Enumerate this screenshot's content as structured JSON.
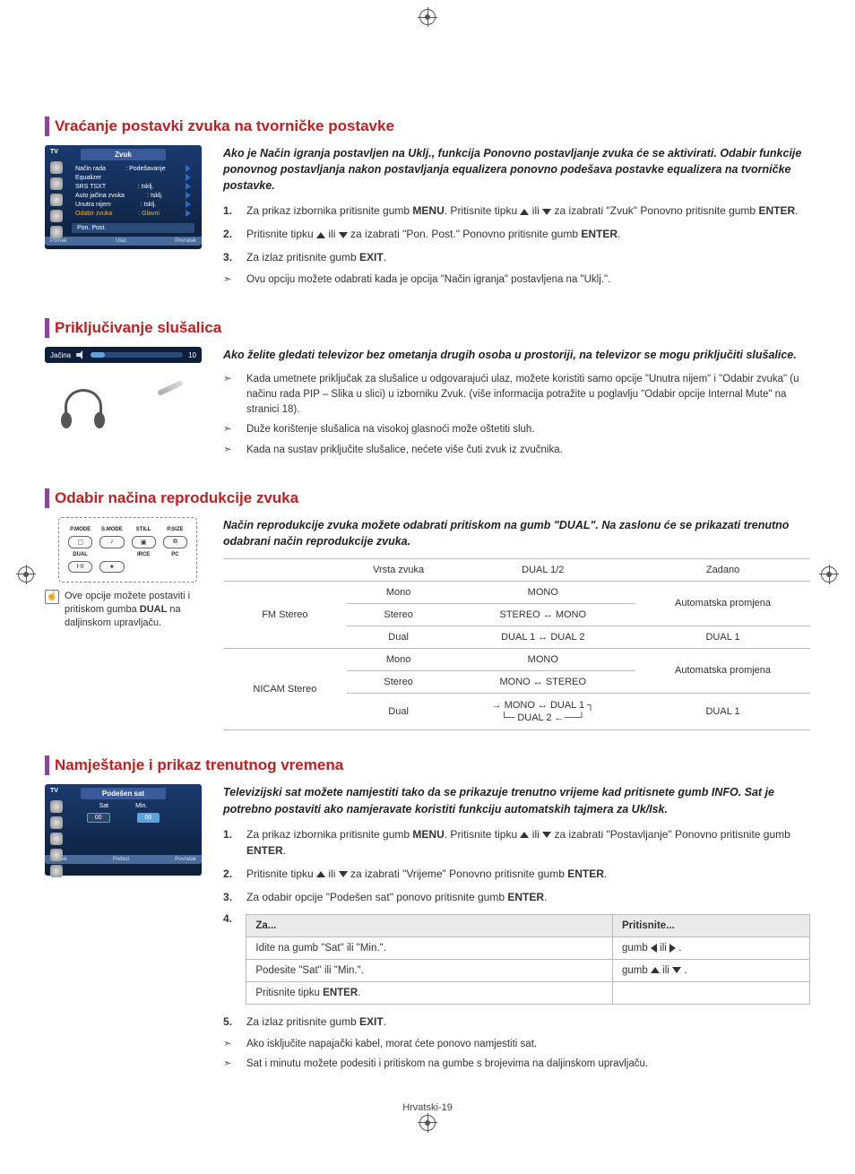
{
  "page_number": "Hrvatski-19",
  "section1": {
    "heading": "Vraćanje postavki zvuka na tvorničke postavke",
    "tv_thumb": {
      "side_label": "TV",
      "title": "Zvuk",
      "rows": [
        {
          "label": "Način rada",
          "value": ": Podešavanje"
        },
        {
          "label": "Equalizer",
          "value": ""
        },
        {
          "label": "SRS TSXT",
          "value": ": Isklj."
        },
        {
          "label": "Auto jačina zvuka",
          "value": ": Isklj."
        },
        {
          "label": "Unutra nijem",
          "value": ": Isklj."
        },
        {
          "label": "Odabir zvuka",
          "value": ": Glavni",
          "highlight": true
        }
      ],
      "button": "Pon. Post.",
      "footer": {
        "a": "Pomak",
        "b": "Ulaz",
        "c": "Povratak"
      }
    },
    "intro": "Ako je Način igranja postavljen na Uklj., funkcija Ponovno postavljanje zvuka će se aktivirati. Odabir funkcije ponovnog postavljanja nakon postavljanja equalizera ponovno podešava postavke equalizera na tvorničke postavke.",
    "steps": [
      "Za prikaz izbornika pritisnite gumb MENU. Pritisnite tipku ▲ ili ▼ za izabrati \"Zvuk\" Ponovno pritisnite gumb ENTER.",
      "Pritisnite tipku ▲ ili ▼ za izabrati \"Pon. Post.\" Ponovno pritisnite gumb ENTER.",
      "Za izlaz pritisnite gumb EXIT."
    ],
    "notes": [
      "Ovu opciju možete odabrati kada je opcija \"Način igranja\" postavljena na \"Uklj.\"."
    ]
  },
  "section2": {
    "heading": "Priključivanje slušalica",
    "volbar": {
      "label": "Jačina",
      "value": "10"
    },
    "intro": "Ako želite gledati televizor bez ometanja drugih osoba u prostoriji, na televizor se mogu priključiti slušalice.",
    "notes": [
      "Kada umetnete priključak za slušalice u odgovarajući ulaz, možete koristiti samo opcije \"Unutra nijem\" i \"Odabir zvuka\" (u načinu rada PIP – Slika u slici) u izborniku Zvuk. (više informacija potražite u poglavlju \"Odabir opcije Internal Mute\" na stranici 18).",
      "Duže korištenje slušalica na visokoj glasnoći može oštetiti sluh.",
      "Kada na sustav priključite slušalice, nećete više čuti zvuk iz zvučnika."
    ]
  },
  "section3": {
    "heading": "Odabir načina reprodukcije zvuka",
    "remote": {
      "labels": [
        "P.MODE",
        "S.MODE",
        "STILL",
        "P.SIZE"
      ],
      "row2": [
        "",
        "",
        "",
        ""
      ],
      "row3_labels": [
        "DUAL",
        "",
        "",
        "IRCE",
        "PC"
      ],
      "row3": [
        "I-II",
        "●",
        "",
        ""
      ]
    },
    "remote_note": "Ove opcije možete postaviti i pritiskom gumba DUAL na daljinskom upravljaču.",
    "intro": "Način reprodukcije zvuka možete odabrati pritiskom na gumb \"DUAL\". Na zaslonu će se prikazati trenutno odabrani način reprodukcije zvuka.",
    "table": {
      "headers": [
        "",
        "Vrsta zvuka",
        "DUAL 1/2",
        "Zadano"
      ],
      "rows": [
        {
          "group": "FM Stereo",
          "rowspan": 3,
          "type": "Mono",
          "dual": "MONO",
          "default": "Automatska promjena",
          "defspan": 2
        },
        {
          "type": "Stereo",
          "dual": "STEREO ↔ MONO"
        },
        {
          "type": "Dual",
          "dual": "DUAL 1 ↔ DUAL 2",
          "default": "DUAL 1"
        },
        {
          "group": "NICAM Stereo",
          "rowspan": 3,
          "type": "Mono",
          "dual": "MONO",
          "default": "Automatska promjena",
          "defspan": 2
        },
        {
          "type": "Stereo",
          "dual": "MONO ↔ STEREO"
        },
        {
          "type": "Dual",
          "dual": "MONO ↔ DUAL 1\nDUAL 2",
          "default": "DUAL 1",
          "arrows": true
        }
      ]
    }
  },
  "section4": {
    "heading": "Namještanje i prikaz trenutnog vremena",
    "tv_thumb": {
      "side_label": "TV",
      "title": "Podešen sat",
      "col1": "Sat",
      "col2": "Min.",
      "val1": "00",
      "val2": "00",
      "footer": {
        "a": "Pomak",
        "b": "Podesi",
        "c": "Povratak"
      }
    },
    "intro": "Televizijski sat možete namjestiti tako da se prikazuje trenutno vrijeme kad pritisnete gumb INFO. Sat je potrebno postaviti ako namjeravate koristiti funkciju automatskih tajmera za Uk/Isk.",
    "steps": [
      "Za prikaz izbornika pritisnite gumb MENU. Pritisnite tipku ▲ ili ▼ za izabrati \"Postavljanje\" Ponovno pritisnite gumb ENTER.",
      "Pritisnite tipku ▲ ili ▼ za izabrati \"Vrijeme\" Ponovno pritisnite gumb ENTER.",
      "Za odabir opcije \"Podešen sat\" ponovo pritisnite gumb ENTER."
    ],
    "step4_num": "4.",
    "table": {
      "headers": [
        "Za...",
        "Pritisnite..."
      ],
      "rows": [
        [
          "Idite na gumb \"Sat\" ili \"Min.\".",
          "gumb ◀ ili ▶ ."
        ],
        [
          "Podesite \"Sat\" ili \"Min.\".",
          "gumb ▲ ili ▼ ."
        ],
        [
          "Pritisnite tipku ENTER.",
          ""
        ]
      ]
    },
    "step5": "Za izlaz pritisnite gumb EXIT.",
    "notes": [
      "Ako isključite napajački kabel, morat ćete ponovo namjestiti sat.",
      "Sat i minutu možete podesiti i pritiskom na gumbe s brojevima na daljinskom upravljaču."
    ]
  }
}
